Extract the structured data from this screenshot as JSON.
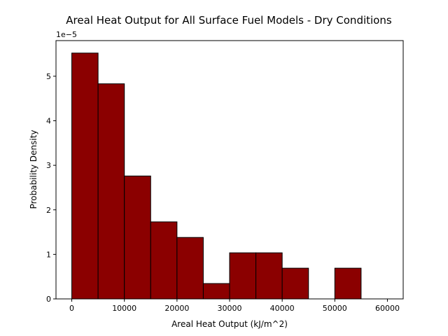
{
  "chart_data": {
    "type": "histogram",
    "title": "Areal Heat Output for All Surface Fuel Models - Dry Conditions",
    "xlabel": "Areal Heat Output (kJ/m^2)",
    "ylabel": "Probability Density",
    "y_offset_label": "1e−5",
    "bar_color": "#8b0000",
    "edge_color": "#000000",
    "bin_edges": [
      0,
      5000,
      10000,
      15000,
      20000,
      25000,
      30000,
      35000,
      40000,
      45000,
      50000,
      55000,
      60000
    ],
    "values": [
      5.52e-05,
      4.83e-05,
      2.76e-05,
      1.73e-05,
      1.38e-05,
      3.45e-06,
      1.035e-05,
      1.035e-05,
      6.9e-06,
      0,
      6.9e-06,
      0
    ],
    "xlim": [
      -3000,
      63000
    ],
    "ylim": [
      0,
      5.8e-05
    ],
    "xticks": [
      0,
      10000,
      20000,
      30000,
      40000,
      50000,
      60000
    ],
    "xtick_labels": [
      "0",
      "10000",
      "20000",
      "30000",
      "40000",
      "50000",
      "60000"
    ],
    "yticks": [
      0,
      1e-05,
      2e-05,
      3e-05,
      4e-05,
      5e-05
    ],
    "ytick_labels": [
      "0",
      "1",
      "2",
      "3",
      "4",
      "5"
    ],
    "grid": false,
    "legend": false
  }
}
